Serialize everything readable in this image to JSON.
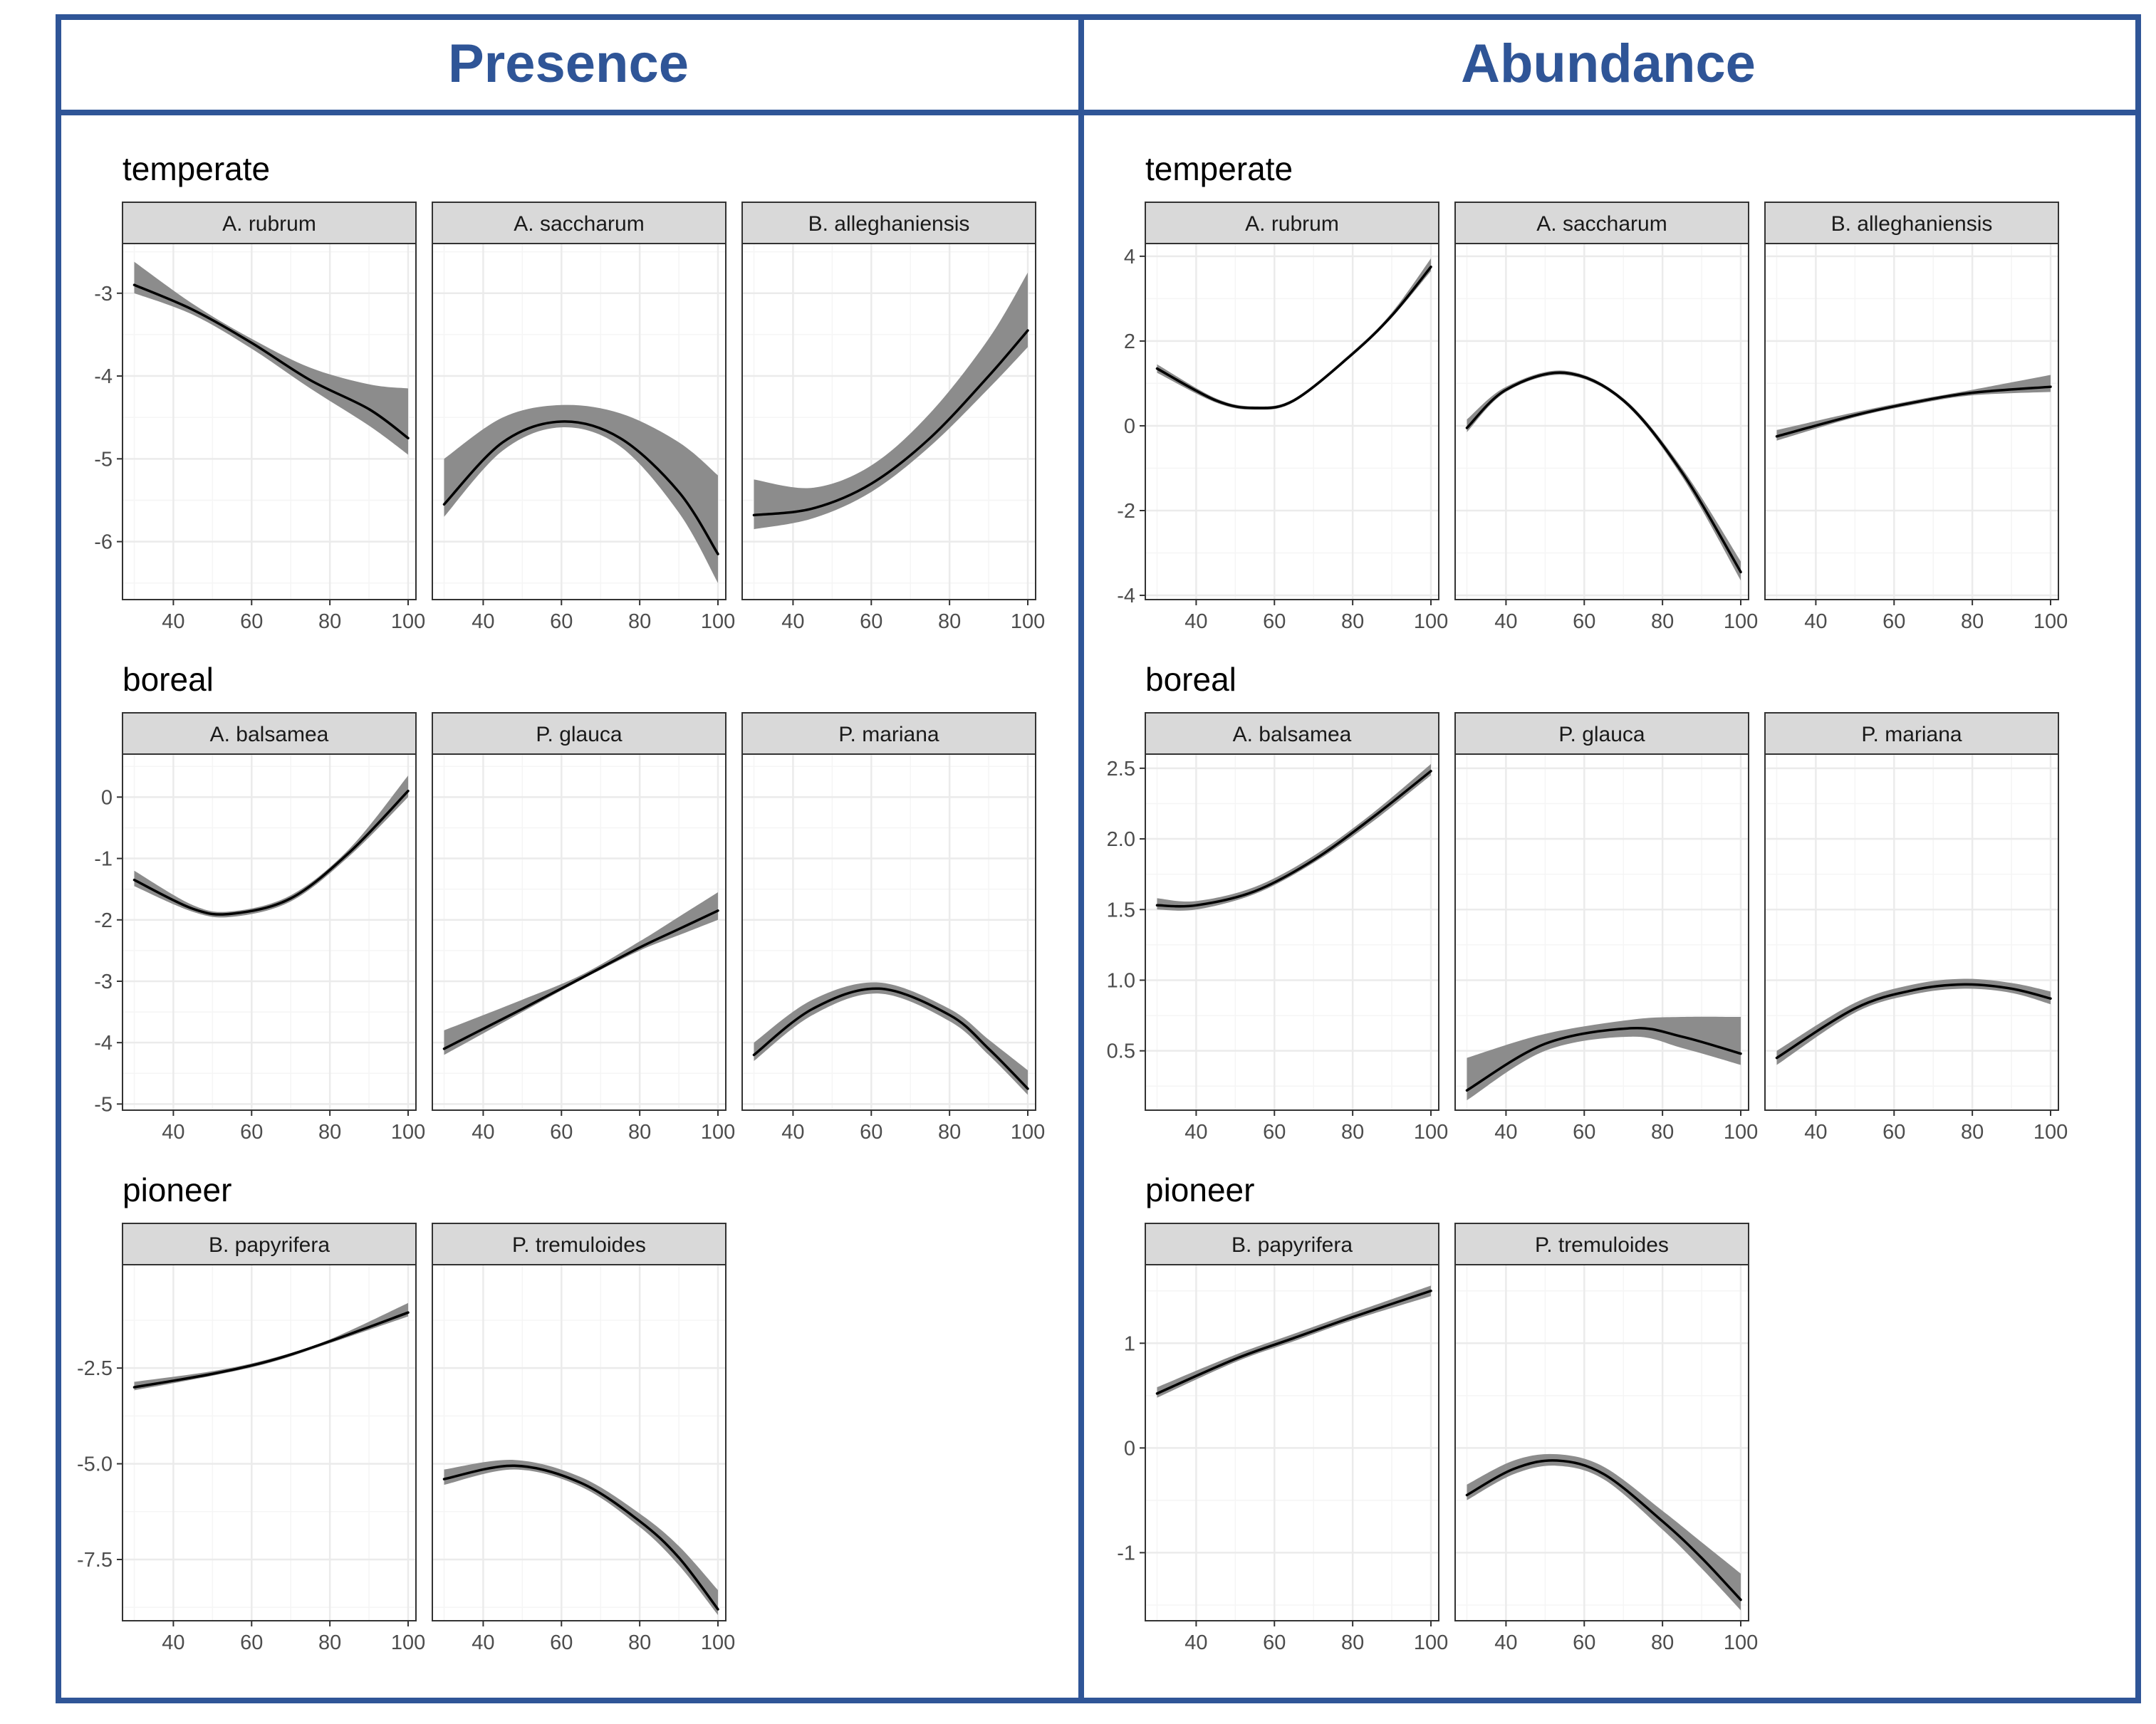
{
  "colors": {
    "frame": "#2f5597",
    "strip_fill": "#d9d9d9",
    "ribbon": "#8c8c8c",
    "line": "#000000",
    "grid_major": "#ebebeb",
    "grid_minor": "#f5f5f5"
  },
  "columns": [
    {
      "title": "Presence"
    },
    {
      "title": "Abundance"
    }
  ],
  "x_axis": {
    "ticks": [
      40,
      60,
      80,
      100
    ],
    "range": [
      27,
      102
    ]
  },
  "chart_data": [
    {
      "type": "line",
      "title": "Presence",
      "groups": [
        {
          "label": "temperate",
          "ylim": [
            -6.7,
            -2.4
          ],
          "yticks": [
            -6,
            -5,
            -4,
            -3
          ],
          "panels": [
            {
              "species": "A. rubrum",
              "points": [
                [
                  30,
                  -2.9,
                  -3.0,
                  -2.62
                ],
                [
                  45,
                  -3.2,
                  -3.26,
                  -3.13
                ],
                [
                  60,
                  -3.6,
                  -3.67,
                  -3.55
                ],
                [
                  75,
                  -4.05,
                  -4.15,
                  -3.9
                ],
                [
                  90,
                  -4.4,
                  -4.6,
                  -4.1
                ],
                [
                  100,
                  -4.75,
                  -4.95,
                  -4.15
                ]
              ]
            },
            {
              "species": "A. saccharum",
              "points": [
                [
                  30,
                  -5.55,
                  -5.7,
                  -5.0
                ],
                [
                  45,
                  -4.8,
                  -4.9,
                  -4.5
                ],
                [
                  60,
                  -4.55,
                  -4.62,
                  -4.35
                ],
                [
                  75,
                  -4.75,
                  -4.85,
                  -4.45
                ],
                [
                  90,
                  -5.4,
                  -5.65,
                  -4.8
                ],
                [
                  100,
                  -6.15,
                  -6.5,
                  -5.2
                ]
              ]
            },
            {
              "species": "B. alleghaniensis",
              "points": [
                [
                  30,
                  -5.68,
                  -5.85,
                  -5.25
                ],
                [
                  45,
                  -5.6,
                  -5.72,
                  -5.35
                ],
                [
                  60,
                  -5.3,
                  -5.4,
                  -5.08
                ],
                [
                  75,
                  -4.75,
                  -4.85,
                  -4.45
                ],
                [
                  90,
                  -4.0,
                  -4.15,
                  -3.55
                ],
                [
                  100,
                  -3.45,
                  -3.65,
                  -2.75
                ]
              ]
            }
          ]
        },
        {
          "label": "boreal",
          "ylim": [
            -5.1,
            0.7
          ],
          "yticks": [
            -5,
            -4,
            -3,
            -2,
            -1,
            0
          ],
          "panels": [
            {
              "species": "A. balsamea",
              "points": [
                [
                  30,
                  -1.35,
                  -1.45,
                  -1.2
                ],
                [
                  45,
                  -1.82,
                  -1.87,
                  -1.76
                ],
                [
                  55,
                  -1.9,
                  -1.95,
                  -1.86
                ],
                [
                  70,
                  -1.65,
                  -1.7,
                  -1.6
                ],
                [
                  85,
                  -0.9,
                  -0.96,
                  -0.84
                ],
                [
                  100,
                  0.1,
                  0.0,
                  0.35
                ]
              ]
            },
            {
              "species": "P. glauca",
              "points": [
                [
                  30,
                  -4.1,
                  -4.2,
                  -3.8
                ],
                [
                  50,
                  -3.45,
                  -3.5,
                  -3.3
                ],
                [
                  65,
                  -2.95,
                  -2.98,
                  -2.9
                ],
                [
                  80,
                  -2.45,
                  -2.5,
                  -2.35
                ],
                [
                  90,
                  -2.15,
                  -2.25,
                  -1.95
                ],
                [
                  100,
                  -1.85,
                  -2.0,
                  -1.55
                ]
              ]
            },
            {
              "species": "P. mariana",
              "points": [
                [
                  30,
                  -4.2,
                  -4.3,
                  -4.0
                ],
                [
                  45,
                  -3.45,
                  -3.55,
                  -3.3
                ],
                [
                  62,
                  -3.12,
                  -3.2,
                  -3.02
                ],
                [
                  80,
                  -3.55,
                  -3.65,
                  -3.45
                ],
                [
                  90,
                  -4.1,
                  -4.2,
                  -3.95
                ],
                [
                  100,
                  -4.75,
                  -4.85,
                  -4.45
                ]
              ]
            }
          ]
        },
        {
          "label": "pioneer",
          "ylim": [
            -9.1,
            0.2
          ],
          "yticks": [
            -7.5,
            -5.0,
            -2.5
          ],
          "panels": [
            {
              "species": "B. papyrifera",
              "points": [
                [
                  30,
                  -3.0,
                  -3.08,
                  -2.86
                ],
                [
                  50,
                  -2.65,
                  -2.7,
                  -2.58
                ],
                [
                  65,
                  -2.3,
                  -2.35,
                  -2.25
                ],
                [
                  80,
                  -1.8,
                  -1.85,
                  -1.75
                ],
                [
                  100,
                  -1.05,
                  -1.15,
                  -0.8
                ]
              ]
            },
            {
              "species": "P. tremuloides",
              "points": [
                [
                  30,
                  -5.4,
                  -5.55,
                  -5.15
                ],
                [
                  48,
                  -5.05,
                  -5.15,
                  -4.9
                ],
                [
                  65,
                  -5.5,
                  -5.6,
                  -5.35
                ],
                [
                  80,
                  -6.5,
                  -6.65,
                  -6.3
                ],
                [
                  90,
                  -7.45,
                  -7.65,
                  -7.15
                ],
                [
                  100,
                  -8.8,
                  -8.95,
                  -8.3
                ]
              ]
            }
          ]
        }
      ]
    },
    {
      "type": "line",
      "title": "Abundance",
      "groups": [
        {
          "label": "temperate",
          "ylim": [
            -4.1,
            4.3
          ],
          "yticks": [
            -4,
            -2,
            0,
            2,
            4
          ],
          "panels": [
            {
              "species": "A. rubrum",
              "points": [
                [
                  30,
                  1.35,
                  1.25,
                  1.45
                ],
                [
                  45,
                  0.6,
                  0.55,
                  0.65
                ],
                [
                  55,
                  0.42,
                  0.38,
                  0.46
                ],
                [
                  65,
                  0.6,
                  0.56,
                  0.64
                ],
                [
                  80,
                  1.7,
                  1.66,
                  1.75
                ],
                [
                  90,
                  2.6,
                  2.55,
                  2.67
                ],
                [
                  100,
                  3.75,
                  3.65,
                  3.95
                ]
              ]
            },
            {
              "species": "A. saccharum",
              "points": [
                [
                  30,
                  -0.05,
                  -0.15,
                  0.15
                ],
                [
                  40,
                  0.85,
                  0.8,
                  0.92
                ],
                [
                  55,
                  1.25,
                  1.2,
                  1.3
                ],
                [
                  70,
                  0.6,
                  0.55,
                  0.65
                ],
                [
                  85,
                  -1.1,
                  -1.2,
                  -1.0
                ],
                [
                  100,
                  -3.45,
                  -3.65,
                  -3.2
                ]
              ]
            },
            {
              "species": "B. alleghaniensis",
              "points": [
                [
                  30,
                  -0.25,
                  -0.35,
                  -0.1
                ],
                [
                  50,
                  0.25,
                  0.2,
                  0.32
                ],
                [
                  65,
                  0.55,
                  0.5,
                  0.6
                ],
                [
                  80,
                  0.78,
                  0.72,
                  0.85
                ],
                [
                  100,
                  0.92,
                  0.8,
                  1.2
                ]
              ]
            }
          ]
        },
        {
          "label": "boreal",
          "ylim": [
            0.08,
            2.6
          ],
          "yticks": [
            0.5,
            1.0,
            1.5,
            2.0,
            2.5
          ],
          "panels": [
            {
              "species": "A. balsamea",
              "points": [
                [
                  30,
                  1.53,
                  1.5,
                  1.58
                ],
                [
                  40,
                  1.53,
                  1.5,
                  1.56
                ],
                [
                  55,
                  1.63,
                  1.61,
                  1.66
                ],
                [
                  70,
                  1.85,
                  1.83,
                  1.88
                ],
                [
                  85,
                  2.15,
                  2.12,
                  2.18
                ],
                [
                  100,
                  2.48,
                  2.45,
                  2.53
                ]
              ]
            },
            {
              "species": "P. glauca",
              "points": [
                [
                  30,
                  0.22,
                  0.15,
                  0.45
                ],
                [
                  50,
                  0.55,
                  0.5,
                  0.62
                ],
                [
                  72,
                  0.66,
                  0.6,
                  0.72
                ],
                [
                  85,
                  0.6,
                  0.52,
                  0.74
                ],
                [
                  100,
                  0.48,
                  0.4,
                  0.74
                ]
              ]
            },
            {
              "species": "P. mariana",
              "points": [
                [
                  30,
                  0.45,
                  0.4,
                  0.5
                ],
                [
                  50,
                  0.8,
                  0.77,
                  0.84
                ],
                [
                  65,
                  0.93,
                  0.9,
                  0.97
                ],
                [
                  78,
                  0.97,
                  0.94,
                  1.01
                ],
                [
                  90,
                  0.94,
                  0.91,
                  0.98
                ],
                [
                  100,
                  0.87,
                  0.83,
                  0.92
                ]
              ]
            }
          ]
        },
        {
          "label": "pioneer",
          "ylim": [
            -1.65,
            1.75
          ],
          "yticks": [
            -1,
            0,
            1
          ],
          "panels": [
            {
              "species": "B. papyrifera",
              "points": [
                [
                  30,
                  0.52,
                  0.48,
                  0.58
                ],
                [
                  50,
                  0.85,
                  0.82,
                  0.89
                ],
                [
                  65,
                  1.05,
                  1.02,
                  1.09
                ],
                [
                  80,
                  1.25,
                  1.22,
                  1.29
                ],
                [
                  100,
                  1.5,
                  1.45,
                  1.55
                ]
              ]
            },
            {
              "species": "P. tremuloides",
              "points": [
                [
                  30,
                  -0.45,
                  -0.5,
                  -0.35
                ],
                [
                  42,
                  -0.2,
                  -0.25,
                  -0.12
                ],
                [
                  53,
                  -0.12,
                  -0.17,
                  -0.06
                ],
                [
                  65,
                  -0.25,
                  -0.3,
                  -0.18
                ],
                [
                  80,
                  -0.7,
                  -0.78,
                  -0.6
                ],
                [
                  90,
                  -1.05,
                  -1.15,
                  -0.9
                ],
                [
                  100,
                  -1.45,
                  -1.55,
                  -1.2
                ]
              ]
            }
          ]
        }
      ]
    }
  ]
}
